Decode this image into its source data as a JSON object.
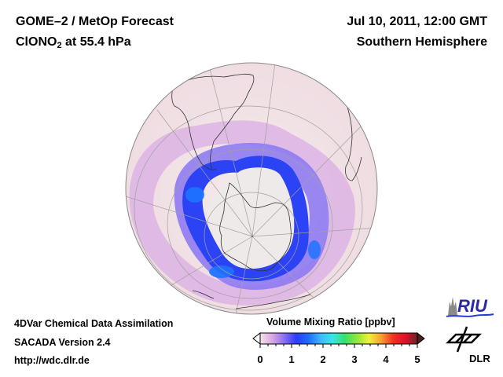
{
  "header": {
    "title_line1": "GOME–2 / MetOp Forecast",
    "species_main": "ClONO",
    "species_sub": "2",
    "species_level": " at 55.4 hPa",
    "date": "Jul 10, 2011, 12:00 GMT",
    "region": "Southern Hemisphere"
  },
  "footer": {
    "line1": "4DVar Chemical Data Assimilation",
    "line2": "SACADA Version 2.4",
    "line3": "http://wdc.dlr.de"
  },
  "colorbar": {
    "label": "Volume Mixing Ratio [ppbv]",
    "min": 0,
    "max": 5,
    "ticks": [
      "0",
      "1",
      "2",
      "3",
      "4",
      "5"
    ],
    "colors": [
      "#f2e4ea",
      "#d9a8e0",
      "#8a6df5",
      "#2a3cf7",
      "#1e6cff",
      "#3fb8ff",
      "#38e6e6",
      "#36e06a",
      "#8ee63c",
      "#f0f03a",
      "#f5a030",
      "#f03020",
      "#e0102a",
      "#6a2626"
    ]
  },
  "logos": {
    "riu": "RIU",
    "dlr": "DLR"
  },
  "map": {
    "projection": "orthographic, south polar",
    "background_color": "#f2e4e6",
    "low_color": "#eeeaea"
  }
}
